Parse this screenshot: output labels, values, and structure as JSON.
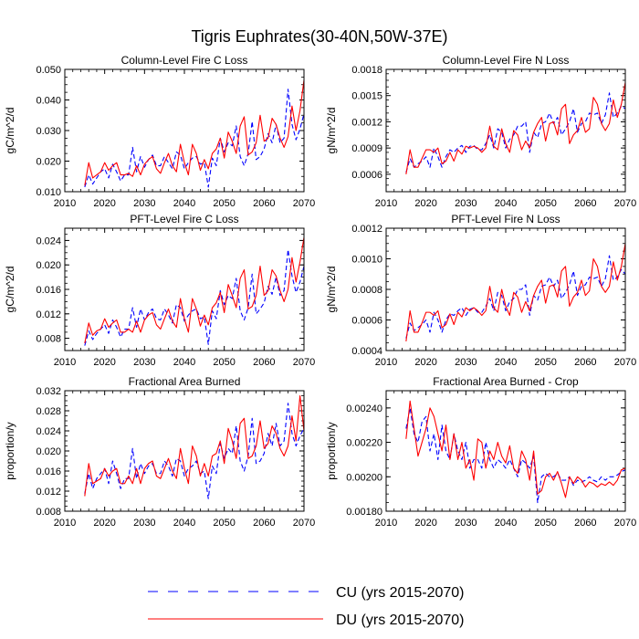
{
  "title": "Tigris Euphrates(30-40N,50W-37E)",
  "legend": [
    {
      "name": "CU",
      "label": "CU (yrs 2015-2070)",
      "color": "#0000ff",
      "dash": true
    },
    {
      "name": "DU",
      "label": "DU (yrs 2015-2070)",
      "color": "#ff0000",
      "dash": false
    }
  ],
  "chart_data": [
    {
      "type": "line",
      "title": "Column-Level Fire C Loss",
      "ylabel": "gC/m^2/d",
      "xlim": [
        2010,
        2070
      ],
      "ylim": [
        0.01,
        0.05
      ],
      "xticks": [
        "2010",
        "2020",
        "2030",
        "2040",
        "2050",
        "2060",
        "2070"
      ],
      "yticks": [
        "0.010",
        "0.020",
        "0.030",
        "0.040",
        "0.050"
      ],
      "x_start": 2015,
      "series": [
        {
          "name": "CU",
          "values": [
            0.0115,
            0.0155,
            0.0125,
            0.0145,
            0.0165,
            0.0175,
            0.0145,
            0.019,
            0.0165,
            0.0135,
            0.0155,
            0.0155,
            0.0245,
            0.0165,
            0.0215,
            0.018,
            0.0205,
            0.022,
            0.0185,
            0.0185,
            0.0215,
            0.0195,
            0.0175,
            0.023,
            0.022,
            0.0175,
            0.0195,
            0.021,
            0.0215,
            0.019,
            0.0195,
            0.0115,
            0.021,
            0.0185,
            0.0275,
            0.023,
            0.026,
            0.025,
            0.0315,
            0.0215,
            0.0185,
            0.0225,
            0.033,
            0.0205,
            0.0215,
            0.024,
            0.029,
            0.026,
            0.032,
            0.026,
            0.0275,
            0.0435,
            0.032,
            0.027,
            0.0305,
            0.0355
          ]
        },
        {
          "name": "DU",
          "values": [
            0.012,
            0.0195,
            0.0145,
            0.0155,
            0.0165,
            0.0195,
            0.017,
            0.0185,
            0.0195,
            0.0155,
            0.0155,
            0.016,
            0.015,
            0.0185,
            0.0155,
            0.019,
            0.0205,
            0.0215,
            0.0175,
            0.016,
            0.0195,
            0.0225,
            0.0185,
            0.0165,
            0.0255,
            0.0195,
            0.0155,
            0.0255,
            0.0225,
            0.017,
            0.0205,
            0.0175,
            0.0225,
            0.024,
            0.0275,
            0.021,
            0.0295,
            0.0265,
            0.0225,
            0.0315,
            0.0345,
            0.022,
            0.023,
            0.026,
            0.035,
            0.0265,
            0.0275,
            0.034,
            0.032,
            0.0275,
            0.0245,
            0.028,
            0.038,
            0.03,
            0.0365,
            0.0465
          ]
        }
      ]
    },
    {
      "type": "line",
      "title": "Column-Level Fire N Loss",
      "ylabel": "gN/m^2/d",
      "xlim": [
        2010,
        2070
      ],
      "ylim": [
        0.0004,
        0.0018
      ],
      "xticks": [
        "2010",
        "2020",
        "2030",
        "2040",
        "2050",
        "2060",
        "2070"
      ],
      "yticks": [
        "0.0006",
        "0.0009",
        "0.0012",
        "0.0015",
        "0.0018"
      ],
      "x_start": 2015,
      "series": [
        {
          "name": "CU",
          "values": [
            0.00062,
            0.00078,
            0.00068,
            0.00072,
            0.00075,
            0.0008,
            0.00068,
            0.0009,
            0.0008,
            0.00068,
            0.0008,
            0.00088,
            0.00085,
            0.0009,
            0.00093,
            0.00085,
            0.00092,
            0.00093,
            0.00088,
            0.00088,
            0.00095,
            0.00105,
            0.0009,
            0.00112,
            0.00108,
            0.0009,
            0.001,
            0.00105,
            0.00115,
            0.00115,
            0.0012,
            0.00085,
            0.00108,
            0.00102,
            0.00118,
            0.0012,
            0.0013,
            0.00118,
            0.00125,
            0.00105,
            0.00112,
            0.0012,
            0.00135,
            0.00108,
            0.00118,
            0.0012,
            0.0013,
            0.00128,
            0.0013,
            0.00118,
            0.00128,
            0.00153,
            0.00125,
            0.0013,
            0.00138,
            0.00135
          ]
        },
        {
          "name": "DU",
          "values": [
            0.0006,
            0.00088,
            0.00068,
            0.00068,
            0.00078,
            0.00088,
            0.00088,
            0.00085,
            0.0009,
            0.00072,
            0.00075,
            0.00085,
            0.00075,
            0.00088,
            0.00083,
            0.00092,
            0.0009,
            0.00092,
            0.0009,
            0.00085,
            0.0009,
            0.00115,
            0.00092,
            0.00088,
            0.00112,
            0.00095,
            0.00085,
            0.0011,
            0.00105,
            0.00088,
            0.00098,
            0.0009,
            0.00108,
            0.00118,
            0.00125,
            0.00098,
            0.00118,
            0.0012,
            0.00105,
            0.00135,
            0.0014,
            0.00095,
            0.00105,
            0.0011,
            0.00125,
            0.00108,
            0.00112,
            0.00148,
            0.0014,
            0.00118,
            0.0011,
            0.00118,
            0.00145,
            0.00125,
            0.0014,
            0.00165
          ]
        }
      ]
    },
    {
      "type": "line",
      "title": "PFT-Level Fire C Loss",
      "ylabel": "gC/m^2/d",
      "xlim": [
        2010,
        2070
      ],
      "ylim": [
        0.006,
        0.026
      ],
      "xticks": [
        "2010",
        "2020",
        "2030",
        "2040",
        "2050",
        "2060",
        "2070"
      ],
      "yticks": [
        "0.008",
        "0.012",
        "0.016",
        "0.020",
        "0.024"
      ],
      "x_start": 2015,
      "series": [
        {
          "name": "CU",
          "values": [
            0.0068,
            0.0092,
            0.0078,
            0.0088,
            0.0095,
            0.0102,
            0.0088,
            0.011,
            0.0098,
            0.0082,
            0.0095,
            0.0095,
            0.013,
            0.0098,
            0.0128,
            0.011,
            0.0122,
            0.0128,
            0.0112,
            0.011,
            0.0128,
            0.0118,
            0.0105,
            0.0135,
            0.013,
            0.0108,
            0.0118,
            0.0125,
            0.0128,
            0.0112,
            0.0115,
            0.007,
            0.0125,
            0.0112,
            0.0158,
            0.0135,
            0.015,
            0.0145,
            0.0178,
            0.0125,
            0.011,
            0.013,
            0.0185,
            0.012,
            0.0128,
            0.0138,
            0.0165,
            0.0152,
            0.018,
            0.015,
            0.0158,
            0.0225,
            0.0182,
            0.0155,
            0.0172,
            0.0198
          ]
        },
        {
          "name": "DU",
          "values": [
            0.0072,
            0.0105,
            0.0085,
            0.0092,
            0.0095,
            0.0112,
            0.0098,
            0.0105,
            0.011,
            0.009,
            0.009,
            0.0095,
            0.009,
            0.0108,
            0.009,
            0.011,
            0.0118,
            0.0122,
            0.0102,
            0.0095,
            0.0112,
            0.0128,
            0.0108,
            0.0098,
            0.0145,
            0.0112,
            0.009,
            0.0145,
            0.0128,
            0.01,
            0.0118,
            0.0102,
            0.013,
            0.0138,
            0.0155,
            0.0122,
            0.0168,
            0.015,
            0.013,
            0.0178,
            0.0192,
            0.0128,
            0.0132,
            0.015,
            0.0198,
            0.015,
            0.0158,
            0.0192,
            0.0182,
            0.0158,
            0.014,
            0.016,
            0.0212,
            0.0172,
            0.0205,
            0.0245
          ]
        }
      ]
    },
    {
      "type": "line",
      "title": "PFT-Level Fire N Loss",
      "ylabel": "gN/m^2/d",
      "xlim": [
        2010,
        2070
      ],
      "ylim": [
        0.0004,
        0.0012
      ],
      "xticks": [
        "2010",
        "2020",
        "2030",
        "2040",
        "2050",
        "2060",
        "2070"
      ],
      "yticks": [
        "0.0004",
        "0.0006",
        "0.0008",
        "0.0010",
        "0.0012"
      ],
      "x_start": 2015,
      "series": [
        {
          "name": "CU",
          "values": [
            0.00048,
            0.00058,
            0.00053,
            0.00055,
            0.00057,
            0.0006,
            0.00052,
            0.00065,
            0.0006,
            0.00052,
            0.0006,
            0.00064,
            0.00063,
            0.00066,
            0.00068,
            0.00063,
            0.00067,
            0.00068,
            0.00065,
            0.00065,
            0.00069,
            0.00074,
            0.00066,
            0.00078,
            0.00076,
            0.00066,
            0.00072,
            0.00074,
            0.0008,
            0.0008,
            0.00083,
            0.00063,
            0.00076,
            0.00073,
            0.00082,
            0.00083,
            0.00088,
            0.00082,
            0.00086,
            0.00074,
            0.00078,
            0.00083,
            0.00092,
            0.00076,
            0.00082,
            0.00083,
            0.00088,
            0.00087,
            0.00088,
            0.00082,
            0.00087,
            0.00102,
            0.00086,
            0.00088,
            0.00093,
            0.0009
          ]
        },
        {
          "name": "DU",
          "values": [
            0.00046,
            0.00066,
            0.00052,
            0.00052,
            0.00058,
            0.00065,
            0.00065,
            0.00063,
            0.00066,
            0.00055,
            0.00057,
            0.00064,
            0.00057,
            0.00065,
            0.00062,
            0.00068,
            0.00066,
            0.00068,
            0.00066,
            0.00063,
            0.00066,
            0.00082,
            0.00068,
            0.00065,
            0.0008,
            0.00069,
            0.00063,
            0.00078,
            0.00075,
            0.00065,
            0.00072,
            0.00066,
            0.00076,
            0.00082,
            0.00086,
            0.00071,
            0.00082,
            0.00083,
            0.00075,
            0.00092,
            0.00095,
            0.00069,
            0.00075,
            0.00078,
            0.00086,
            0.00076,
            0.00079,
            0.001,
            0.00095,
            0.00082,
            0.00078,
            0.00082,
            0.00098,
            0.00086,
            0.00095,
            0.0011
          ]
        }
      ]
    },
    {
      "type": "line",
      "title": "Fractional Area Burned",
      "ylabel": "proportion/y",
      "xlim": [
        2010,
        2070
      ],
      "ylim": [
        0.008,
        0.032
      ],
      "xticks": [
        "2010",
        "2020",
        "2030",
        "2040",
        "2050",
        "2060",
        "2070"
      ],
      "yticks": [
        "0.008",
        "0.012",
        "0.016",
        "0.020",
        "0.024",
        "0.028",
        "0.032"
      ],
      "x_start": 2015,
      "series": [
        {
          "name": "CU",
          "values": [
            0.0115,
            0.0155,
            0.0125,
            0.0145,
            0.0155,
            0.0165,
            0.0135,
            0.018,
            0.0155,
            0.0125,
            0.0145,
            0.0145,
            0.0205,
            0.0145,
            0.0175,
            0.0155,
            0.017,
            0.0175,
            0.0155,
            0.0155,
            0.018,
            0.017,
            0.015,
            0.0185,
            0.018,
            0.015,
            0.0165,
            0.017,
            0.018,
            0.0155,
            0.016,
            0.0105,
            0.017,
            0.0155,
            0.0215,
            0.0185,
            0.0205,
            0.0195,
            0.025,
            0.018,
            0.016,
            0.019,
            0.0265,
            0.0175,
            0.018,
            0.0195,
            0.0235,
            0.021,
            0.0255,
            0.021,
            0.022,
            0.0295,
            0.0235,
            0.021,
            0.023,
            0.0245
          ]
        },
        {
          "name": "DU",
          "values": [
            0.011,
            0.0175,
            0.0135,
            0.014,
            0.0145,
            0.0165,
            0.015,
            0.016,
            0.0165,
            0.0135,
            0.0135,
            0.015,
            0.0135,
            0.0165,
            0.0135,
            0.0165,
            0.0175,
            0.018,
            0.015,
            0.0145,
            0.0165,
            0.0185,
            0.016,
            0.0145,
            0.0205,
            0.0165,
            0.0135,
            0.021,
            0.019,
            0.015,
            0.0175,
            0.015,
            0.019,
            0.0195,
            0.022,
            0.0175,
            0.0245,
            0.022,
            0.0185,
            0.0255,
            0.0265,
            0.0185,
            0.019,
            0.021,
            0.026,
            0.0205,
            0.0215,
            0.025,
            0.0235,
            0.0205,
            0.019,
            0.021,
            0.027,
            0.022,
            0.031,
            0.024
          ]
        }
      ]
    },
    {
      "type": "line",
      "title": "Fractional Area Burned - Crop",
      "ylabel": "proportion/y",
      "xlim": [
        2010,
        2070
      ],
      "ylim": [
        0.0018,
        0.0025
      ],
      "xticks": [
        "2010",
        "2020",
        "2030",
        "2040",
        "2050",
        "2060",
        "2070"
      ],
      "yticks": [
        "0.00180",
        "0.00200",
        "0.00220",
        "0.00240"
      ],
      "x_start": 2015,
      "series": [
        {
          "name": "CU",
          "values": [
            0.00228,
            0.0024,
            0.00225,
            0.0022,
            0.00232,
            0.00235,
            0.00215,
            0.00225,
            0.0021,
            0.0023,
            0.00215,
            0.0021,
            0.00225,
            0.00215,
            0.0021,
            0.0022,
            0.00205,
            0.0021,
            0.0021,
            0.00205,
            0.0022,
            0.0021,
            0.00205,
            0.0021,
            0.00208,
            0.00205,
            0.0021,
            0.00205,
            0.002,
            0.0021,
            0.00208,
            0.00205,
            0.00212,
            0.00185,
            0.002,
            0.00202,
            0.002,
            0.002,
            0.00202,
            0.00198,
            0.00198,
            0.002,
            0.00195,
            0.00198,
            0.00197,
            0.00198,
            0.002,
            0.00198,
            0.00197,
            0.002,
            0.00198,
            0.002,
            0.002,
            0.00201,
            0.00203,
            0.00204
          ]
        },
        {
          "name": "DU",
          "values": [
            0.00222,
            0.00244,
            0.00228,
            0.00212,
            0.0022,
            0.00228,
            0.0024,
            0.00235,
            0.00225,
            0.00215,
            0.0023,
            0.0021,
            0.00225,
            0.0021,
            0.0022,
            0.00205,
            0.0021,
            0.00198,
            0.00222,
            0.0022,
            0.00205,
            0.00215,
            0.0021,
            0.0022,
            0.00212,
            0.00208,
            0.00218,
            0.00205,
            0.00202,
            0.00215,
            0.0021,
            0.00198,
            0.00215,
            0.0019,
            0.00192,
            0.002,
            0.00202,
            0.00198,
            0.00203,
            0.00196,
            0.00188,
            0.002,
            0.00196,
            0.002,
            0.00198,
            0.00194,
            0.00197,
            0.00196,
            0.00194,
            0.00196,
            0.00195,
            0.00197,
            0.00195,
            0.00198,
            0.00204,
            0.00205
          ]
        }
      ]
    }
  ]
}
